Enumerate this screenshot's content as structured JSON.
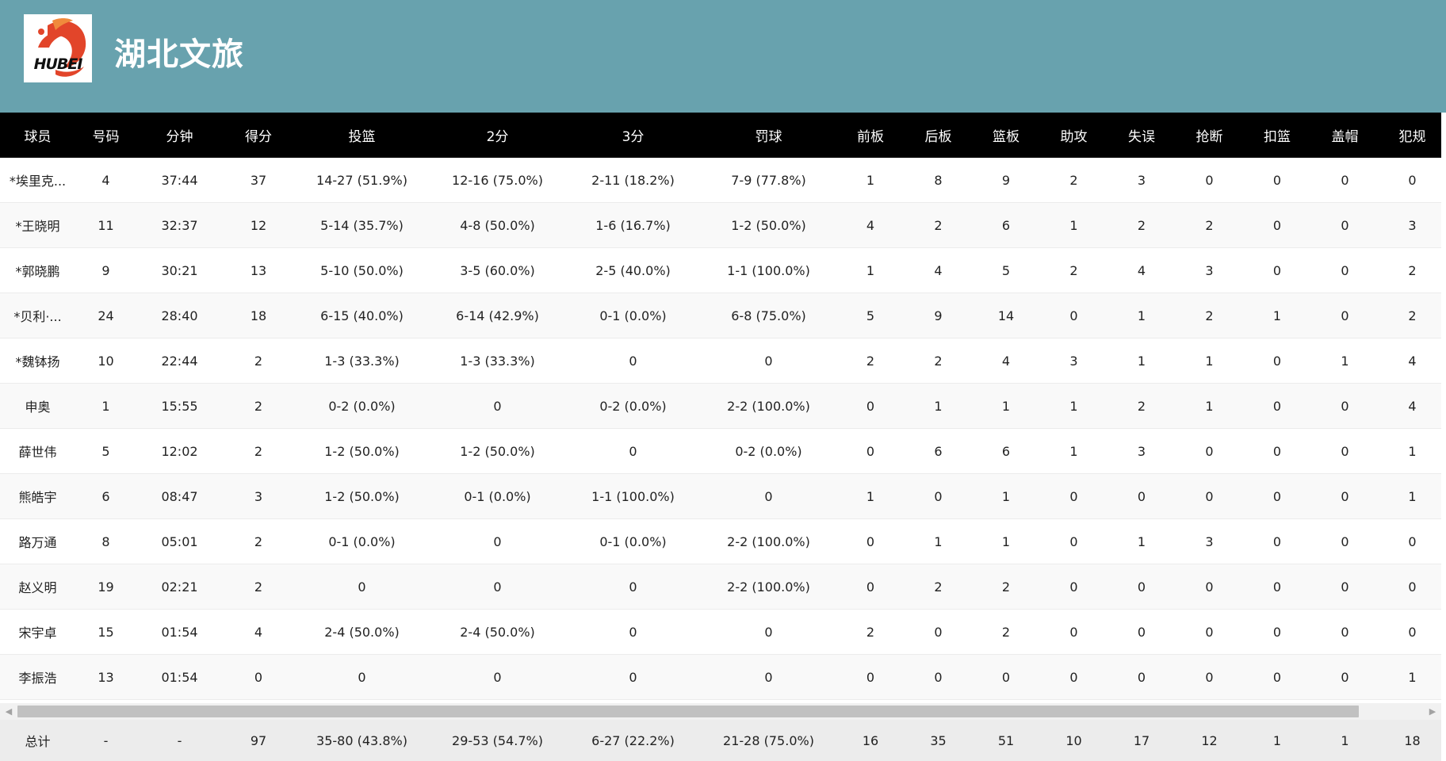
{
  "team": {
    "name": "湖北文旅",
    "logo_text": "HUBEI",
    "logo_colors": {
      "primary": "#e2452a",
      "accent": "#f08a3c"
    }
  },
  "header_bg": "#68a2ae",
  "table": {
    "columns": [
      "球员",
      "号码",
      "分钟",
      "得分",
      "投篮",
      "2分",
      "3分",
      "罚球",
      "前板",
      "后板",
      "篮板",
      "助攻",
      "失误",
      "抢断",
      "扣篮",
      "盖帽",
      "犯规"
    ],
    "rows": [
      [
        "*埃里克...",
        "4",
        "37:44",
        "37",
        "14-27 (51.9%)",
        "12-16 (75.0%)",
        "2-11 (18.2%)",
        "7-9 (77.8%)",
        "1",
        "8",
        "9",
        "2",
        "3",
        "0",
        "0",
        "0",
        "0"
      ],
      [
        "*王晓明",
        "11",
        "32:37",
        "12",
        "5-14 (35.7%)",
        "4-8 (50.0%)",
        "1-6 (16.7%)",
        "1-2 (50.0%)",
        "4",
        "2",
        "6",
        "1",
        "2",
        "2",
        "0",
        "0",
        "3"
      ],
      [
        "*郭晓鹏",
        "9",
        "30:21",
        "13",
        "5-10 (50.0%)",
        "3-5 (60.0%)",
        "2-5 (40.0%)",
        "1-1 (100.0%)",
        "1",
        "4",
        "5",
        "2",
        "4",
        "3",
        "0",
        "0",
        "2"
      ],
      [
        "*贝利·...",
        "24",
        "28:40",
        "18",
        "6-15 (40.0%)",
        "6-14 (42.9%)",
        "0-1 (0.0%)",
        "6-8 (75.0%)",
        "5",
        "9",
        "14",
        "0",
        "1",
        "2",
        "1",
        "0",
        "2"
      ],
      [
        "*魏钵扬",
        "10",
        "22:44",
        "2",
        "1-3 (33.3%)",
        "1-3 (33.3%)",
        "0",
        "0",
        "2",
        "2",
        "4",
        "3",
        "1",
        "1",
        "0",
        "1",
        "4"
      ],
      [
        "申奥",
        "1",
        "15:55",
        "2",
        "0-2 (0.0%)",
        "0",
        "0-2 (0.0%)",
        "2-2 (100.0%)",
        "0",
        "1",
        "1",
        "1",
        "2",
        "1",
        "0",
        "0",
        "4"
      ],
      [
        "薛世伟",
        "5",
        "12:02",
        "2",
        "1-2 (50.0%)",
        "1-2 (50.0%)",
        "0",
        "0-2 (0.0%)",
        "0",
        "6",
        "6",
        "1",
        "3",
        "0",
        "0",
        "0",
        "1"
      ],
      [
        "熊皓宇",
        "6",
        "08:47",
        "3",
        "1-2 (50.0%)",
        "0-1 (0.0%)",
        "1-1 (100.0%)",
        "0",
        "1",
        "0",
        "1",
        "0",
        "0",
        "0",
        "0",
        "0",
        "1"
      ],
      [
        "路万通",
        "8",
        "05:01",
        "2",
        "0-1 (0.0%)",
        "0",
        "0-1 (0.0%)",
        "2-2 (100.0%)",
        "0",
        "1",
        "1",
        "0",
        "1",
        "3",
        "0",
        "0",
        "0"
      ],
      [
        "赵义明",
        "19",
        "02:21",
        "2",
        "0",
        "0",
        "0",
        "2-2 (100.0%)",
        "0",
        "2",
        "2",
        "0",
        "0",
        "0",
        "0",
        "0",
        "0"
      ],
      [
        "宋宇卓",
        "15",
        "01:54",
        "4",
        "2-4 (50.0%)",
        "2-4 (50.0%)",
        "0",
        "0",
        "2",
        "0",
        "2",
        "0",
        "0",
        "0",
        "0",
        "0",
        "0"
      ],
      [
        "李振浩",
        "13",
        "01:54",
        "0",
        "0",
        "0",
        "0",
        "0",
        "0",
        "0",
        "0",
        "0",
        "0",
        "0",
        "0",
        "0",
        "1"
      ]
    ],
    "totals": [
      "总计",
      "-",
      "-",
      "97",
      "35-80 (43.8%)",
      "29-53 (54.7%)",
      "6-27 (22.2%)",
      "21-28 (75.0%)",
      "16",
      "35",
      "51",
      "10",
      "17",
      "12",
      "1",
      "1",
      "18"
    ]
  },
  "scrollbar": {
    "left_arrow_icon": "scroll-left-icon",
    "right_arrow_icon": "scroll-right-icon"
  }
}
